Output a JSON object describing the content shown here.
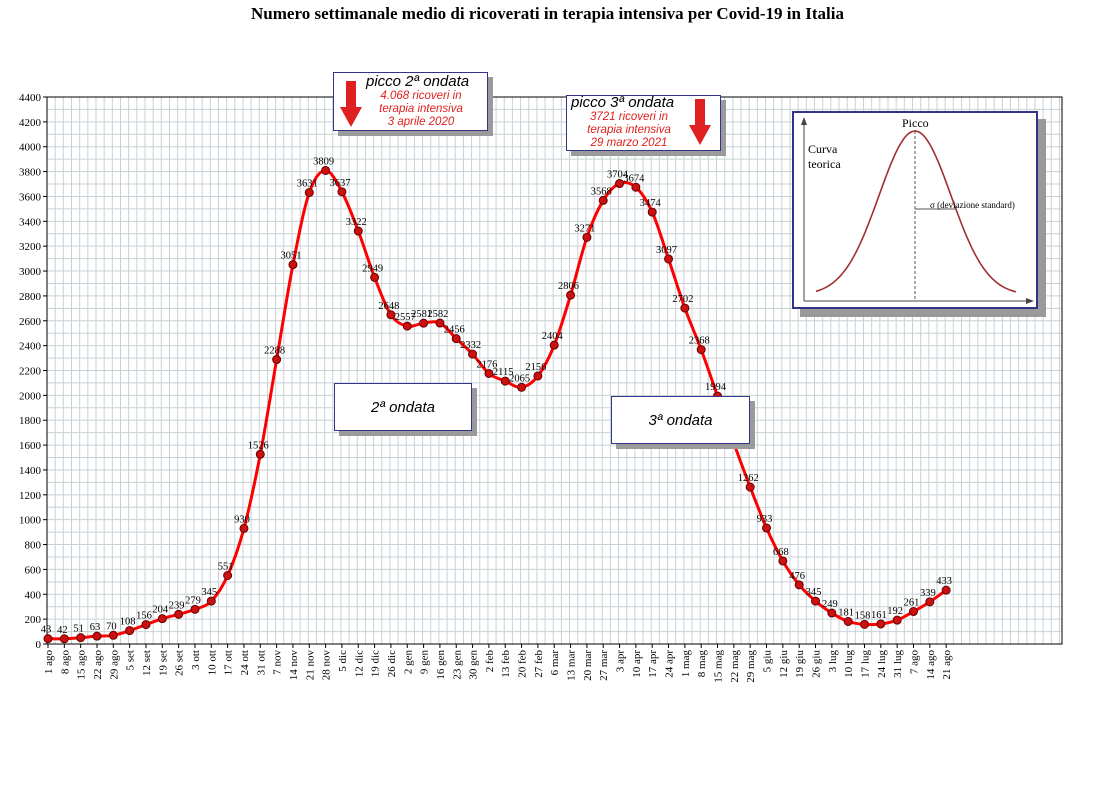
{
  "chart_data": {
    "type": "line",
    "title": "Numero settimanale medio di ricoverati in terapia intensiva per Covid-19 in Italia",
    "ylim": [
      0,
      4400
    ],
    "y_ticks": [
      0,
      200,
      400,
      600,
      800,
      1000,
      1200,
      1400,
      1600,
      1800,
      2000,
      2200,
      2400,
      2600,
      2800,
      3000,
      3200,
      3400,
      3600,
      3800,
      4000,
      4200,
      4400
    ],
    "grid": true,
    "categories": [
      "1 ago",
      "8 ago",
      "15 ago",
      "22 ago",
      "29 ago",
      "5 set",
      "12 set",
      "19 set",
      "26 set",
      "3 ott",
      "10 ott",
      "17 ott",
      "24 ott",
      "31 ott",
      "7 nov",
      "14 nov",
      "21 nov",
      "28 nov",
      "5 dic",
      "12 dic",
      "19 dic",
      "26 dic",
      "2 gen",
      "9 gen",
      "16 gen",
      "23 gen",
      "30 gen",
      "2 feb",
      "13 feb",
      "20 feb",
      "27 feb",
      "6 mar",
      "13 mar",
      "20 mar",
      "27 mar",
      "3 apr",
      "10 apr",
      "17 apr",
      "24 apr",
      "1 mag",
      "8 mag",
      "15 mag",
      "22 mag",
      "29 mag",
      "5 giu",
      "12 giu",
      "19 giu",
      "26 giu",
      "3 lug",
      "10 lug",
      "17 lug",
      "24 lug",
      "31 lug",
      "7 ago",
      "14 ago",
      "21 ago"
    ],
    "series": [
      {
        "color": "#ff0000",
        "values": [
          43,
          42,
          51,
          63,
          70,
          108,
          156,
          204,
          239,
          279,
          345,
          551,
          930,
          1526,
          2288,
          3051,
          3631,
          3809,
          3637,
          3322,
          2949,
          2648,
          2557,
          2581,
          2582,
          2456,
          2332,
          2176,
          2115,
          2065,
          2156,
          2404,
          2806,
          3271,
          3568,
          3704,
          3674,
          3474,
          3097,
          2702,
          2368,
          1994,
          1615,
          1262,
          933,
          668,
          476,
          345,
          249,
          181,
          158,
          161,
          192,
          261,
          339,
          433
        ]
      }
    ]
  },
  "annotations": {
    "peak2": {
      "title": "picco 2ª ondata",
      "line1": "4.068 ricoveri in",
      "line2": "terapia intensiva",
      "line3": "3 aprile 2020"
    },
    "peak3": {
      "title": "picco 3ª ondata",
      "line1": "3721 ricoveri in",
      "line2": "terapia intensiva",
      "line3": "29 marzo 2021"
    },
    "wave2": "2ª ondata",
    "wave3": "3ª ondata",
    "arrow_color": "#e02020"
  },
  "inset": {
    "peak_label": "Picco",
    "curve_label_1": "Curva",
    "curve_label_2": "teorica",
    "sigma_label": "σ  (deviazione standard)",
    "curve_color": "#a03030"
  }
}
